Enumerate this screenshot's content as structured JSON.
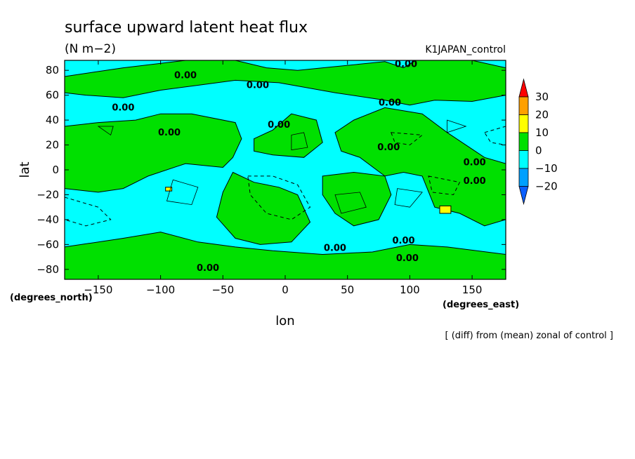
{
  "chart_data": {
    "type": "heatmap",
    "title": "surface upward latent heat flux",
    "units": "(N m−2)",
    "run_label": "K1JAPAN_control",
    "xlabel": "lon",
    "ylabel": "lat",
    "x_unit_label": "(degrees_east)",
    "y_unit_label": "(degrees_north)",
    "note": "[ (diff) from (mean) zonal of control ]",
    "xlim": [
      -177,
      177
    ],
    "ylim": [
      -88,
      88
    ],
    "xticks": [
      -150,
      -100,
      -50,
      0,
      50,
      100,
      150
    ],
    "xtick_labels": [
      "−150",
      "−100",
      "−50",
      "0",
      "50",
      "100",
      "150"
    ],
    "yticks": [
      80,
      60,
      40,
      20,
      0,
      -20,
      -40,
      -60,
      -80
    ],
    "ytick_labels": [
      "80",
      "60",
      "40",
      "20",
      "0",
      "−20",
      "−40",
      "−60",
      "−80"
    ],
    "contour_label": "0.00",
    "contour_label_positions": [
      {
        "lon": 97,
        "lat": 85
      },
      {
        "lon": -80,
        "lat": 76
      },
      {
        "lon": -22,
        "lat": 68
      },
      {
        "lon": 84,
        "lat": 54
      },
      {
        "lon": -130,
        "lat": 50
      },
      {
        "lon": -5,
        "lat": 36
      },
      {
        "lon": -93,
        "lat": 30
      },
      {
        "lon": 83,
        "lat": 18
      },
      {
        "lon": 152,
        "lat": 6
      },
      {
        "lon": 152,
        "lat": -9
      },
      {
        "lon": 40,
        "lat": -63
      },
      {
        "lon": 95,
        "lat": -57
      },
      {
        "lon": 98,
        "lat": -71
      },
      {
        "lon": -62,
        "lat": -79
      }
    ],
    "color_levels": [
      -20,
      -10,
      0,
      10,
      20,
      30
    ],
    "colorbar_labels": [
      "30",
      "20",
      "10",
      "0",
      "−10",
      "−20"
    ],
    "colors": {
      "below_-20": "#0a5fff",
      "-20_to_-10": "#00a0ff",
      "-10_to_0": "#00ffff",
      "0_to_10": "#00e000",
      "10_to_20": "#ffff00",
      "20_to_30": "#ffa000",
      "above_30": "#ff0000"
    },
    "regions_0_to_10": [
      [
        [
          -177,
          75
        ],
        [
          -130,
          82
        ],
        [
          -80,
          88
        ],
        [
          -40,
          88
        ],
        [
          -15,
          82
        ],
        [
          10,
          80
        ],
        [
          40,
          83
        ],
        [
          80,
          87
        ],
        [
          95,
          82
        ],
        [
          105,
          88
        ],
        [
          150,
          88
        ],
        [
          177,
          82
        ],
        [
          177,
          60
        ],
        [
          150,
          55
        ],
        [
          120,
          56
        ],
        [
          100,
          52
        ],
        [
          80,
          56
        ],
        [
          40,
          62
        ],
        [
          -5,
          70
        ],
        [
          -40,
          72
        ],
        [
          -70,
          68
        ],
        [
          -100,
          64
        ],
        [
          -130,
          58
        ],
        [
          -160,
          60
        ],
        [
          -177,
          62
        ]
      ],
      [
        [
          -177,
          35
        ],
        [
          -150,
          38
        ],
        [
          -120,
          40
        ],
        [
          -100,
          45
        ],
        [
          -75,
          45
        ],
        [
          -40,
          38
        ],
        [
          -35,
          25
        ],
        [
          -42,
          10
        ],
        [
          -50,
          2
        ],
        [
          -80,
          5
        ],
        [
          -110,
          -5
        ],
        [
          -130,
          -15
        ],
        [
          -150,
          -18
        ],
        [
          -177,
          -15
        ]
      ],
      [
        [
          -42,
          -2
        ],
        [
          -25,
          -10
        ],
        [
          -5,
          -14
        ],
        [
          10,
          -20
        ],
        [
          20,
          -42
        ],
        [
          5,
          -58
        ],
        [
          -20,
          -60
        ],
        [
          -40,
          -55
        ],
        [
          -55,
          -38
        ],
        [
          -50,
          -18
        ]
      ],
      [
        [
          -25,
          25
        ],
        [
          -10,
          32
        ],
        [
          5,
          45
        ],
        [
          25,
          40
        ],
        [
          30,
          22
        ],
        [
          15,
          10
        ],
        [
          -10,
          12
        ],
        [
          -25,
          15
        ]
      ],
      [
        [
          55,
          40
        ],
        [
          80,
          50
        ],
        [
          110,
          45
        ],
        [
          130,
          30
        ],
        [
          160,
          10
        ],
        [
          177,
          5
        ],
        [
          177,
          -40
        ],
        [
          160,
          -45
        ],
        [
          140,
          -35
        ],
        [
          120,
          -30
        ],
        [
          110,
          -5
        ],
        [
          95,
          -2
        ],
        [
          80,
          -5
        ],
        [
          60,
          10
        ],
        [
          45,
          15
        ],
        [
          40,
          30
        ]
      ],
      [
        [
          30,
          -5
        ],
        [
          55,
          -2
        ],
        [
          80,
          -5
        ],
        [
          85,
          -20
        ],
        [
          75,
          -40
        ],
        [
          55,
          -45
        ],
        [
          40,
          -35
        ],
        [
          30,
          -20
        ]
      ],
      [
        [
          -130,
          -55
        ],
        [
          -100,
          -50
        ],
        [
          -70,
          -58
        ],
        [
          -40,
          -62
        ],
        [
          -10,
          -65
        ],
        [
          30,
          -68
        ],
        [
          70,
          -66
        ],
        [
          100,
          -60
        ],
        [
          130,
          -62
        ],
        [
          177,
          -68
        ],
        [
          177,
          -88
        ],
        [
          -177,
          -88
        ],
        [
          -177,
          -62
        ]
      ]
    ],
    "regions_10_to_20": [
      [
        [
          -96,
          -14
        ],
        [
          -91,
          -14
        ],
        [
          -91,
          -17
        ],
        [
          -96,
          -17
        ]
      ],
      [
        [
          124,
          -29
        ],
        [
          133,
          -29
        ],
        [
          133,
          -35
        ],
        [
          124,
          -35
        ]
      ]
    ],
    "dashed_contours": [
      [
        [
          -30,
          -5
        ],
        [
          -10,
          -5
        ],
        [
          10,
          -12
        ],
        [
          20,
          -30
        ],
        [
          5,
          -40
        ],
        [
          -15,
          -35
        ],
        [
          -28,
          -20
        ]
      ],
      [
        [
          -177,
          -22
        ],
        [
          -150,
          -30
        ],
        [
          -140,
          -40
        ],
        [
          -160,
          -45
        ],
        [
          -177,
          -40
        ]
      ],
      [
        [
          115,
          -5
        ],
        [
          140,
          -10
        ],
        [
          135,
          -20
        ],
        [
          118,
          -18
        ]
      ],
      [
        [
          85,
          30
        ],
        [
          110,
          28
        ],
        [
          100,
          20
        ],
        [
          88,
          22
        ]
      ],
      [
        [
          160,
          30
        ],
        [
          177,
          35
        ],
        [
          177,
          20
        ],
        [
          165,
          22
        ]
      ]
    ],
    "solid_contours": [
      [
        [
          -90,
          -8
        ],
        [
          -70,
          -14
        ],
        [
          -75,
          -28
        ],
        [
          -95,
          -25
        ]
      ],
      [
        [
          5,
          28
        ],
        [
          15,
          30
        ],
        [
          18,
          18
        ],
        [
          5,
          16
        ]
      ],
      [
        [
          -150,
          35
        ],
        [
          -138,
          35
        ],
        [
          -140,
          28
        ]
      ],
      [
        [
          40,
          -20
        ],
        [
          60,
          -18
        ],
        [
          65,
          -30
        ],
        [
          45,
          -35
        ]
      ],
      [
        [
          90,
          -15
        ],
        [
          110,
          -18
        ],
        [
          100,
          -30
        ],
        [
          88,
          -28
        ]
      ],
      [
        [
          130,
          40
        ],
        [
          145,
          35
        ],
        [
          130,
          30
        ]
      ]
    ]
  }
}
